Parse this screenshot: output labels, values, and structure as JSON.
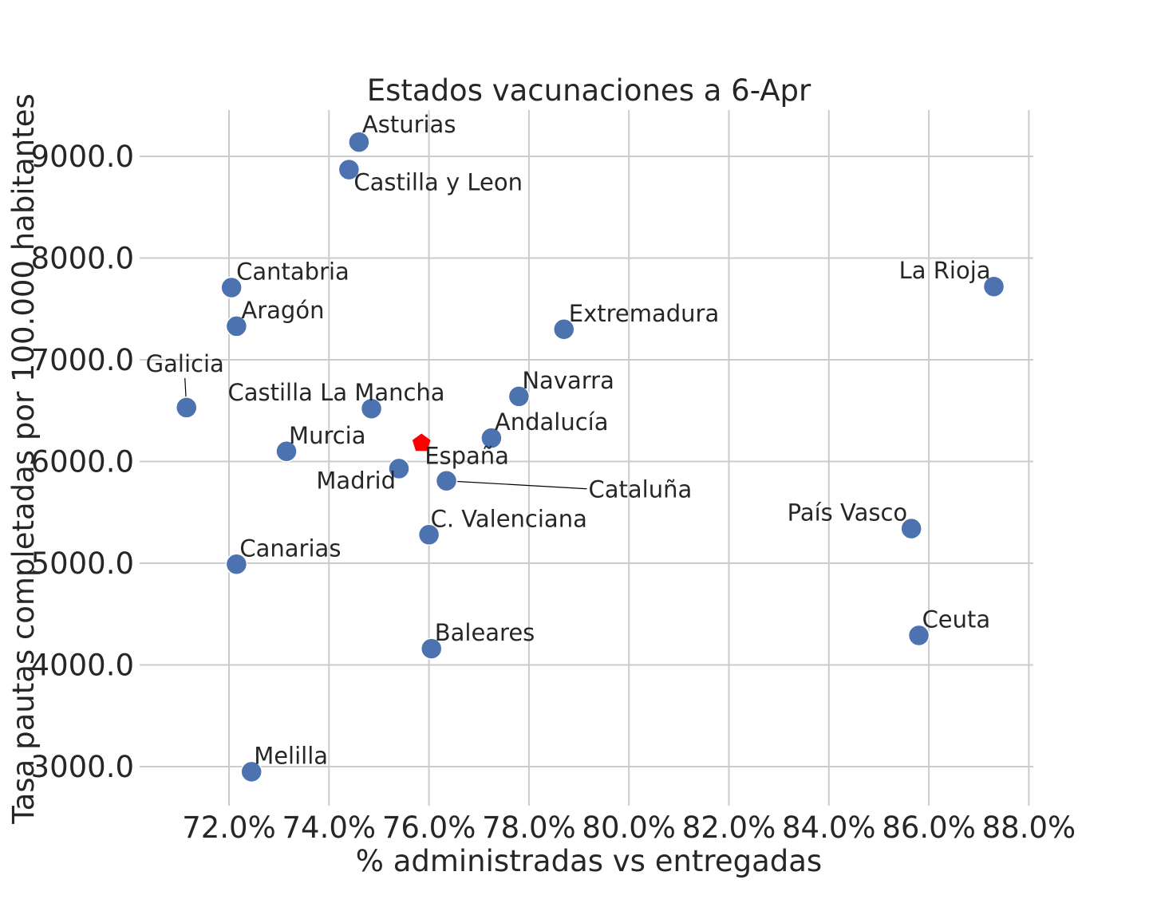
{
  "chart_data": {
    "type": "scatter",
    "title": "Estados vacunaciones a 6-Apr",
    "xlabel": "% administradas vs entregadas",
    "ylabel": "Tasa pautas completadas por 100.000 habitantes",
    "xlim": [
      70.0,
      88.0
    ],
    "ylim": [
      2700,
      9450
    ],
    "x_ticks": [
      72,
      74,
      76,
      78,
      80,
      82,
      84,
      86,
      88
    ],
    "x_tick_labels": [
      "72.0%",
      "74.0%",
      "76.0%",
      "78.0%",
      "80.0%",
      "82.0%",
      "84.0%",
      "86.0%",
      "88.0%"
    ],
    "y_ticks": [
      3000,
      4000,
      5000,
      6000,
      7000,
      8000,
      9000
    ],
    "y_tick_labels": [
      "3000.0",
      "4000.0",
      "5000.0",
      "6000.0",
      "7000.0",
      "8000.0",
      "9000.0"
    ],
    "grid": true,
    "marker_color": "#4c72b0",
    "highlight_color": "#ff0000",
    "points": [
      {
        "label": "Asturias",
        "x": 74.6,
        "y": 9140
      },
      {
        "label": "Castilla y Leon",
        "x": 74.4,
        "y": 8870
      },
      {
        "label": "Cantabria",
        "x": 72.05,
        "y": 7710
      },
      {
        "label": "La Rioja",
        "x": 87.3,
        "y": 7720
      },
      {
        "label": "Aragón",
        "x": 72.15,
        "y": 7330
      },
      {
        "label": "Extremadura",
        "x": 78.7,
        "y": 7300
      },
      {
        "label": "Galicia",
        "x": 71.15,
        "y": 6530
      },
      {
        "label": "Castilla La Mancha",
        "x": 74.85,
        "y": 6520
      },
      {
        "label": "Navarra",
        "x": 77.8,
        "y": 6640
      },
      {
        "label": "Andalucía",
        "x": 77.25,
        "y": 6230
      },
      {
        "label": "Murcia",
        "x": 73.15,
        "y": 6100
      },
      {
        "label": "Madrid",
        "x": 75.4,
        "y": 5930
      },
      {
        "label": "Cataluña",
        "x": 76.35,
        "y": 5810
      },
      {
        "label": "C. Valenciana",
        "x": 76.0,
        "y": 5280
      },
      {
        "label": "País Vasco",
        "x": 85.65,
        "y": 5340
      },
      {
        "label": "Canarias",
        "x": 72.15,
        "y": 4990
      },
      {
        "label": "Baleares",
        "x": 76.05,
        "y": 4160
      },
      {
        "label": "Ceuta",
        "x": 85.8,
        "y": 4290
      },
      {
        "label": "Melilla",
        "x": 72.45,
        "y": 2950
      }
    ],
    "highlight": {
      "label": "España",
      "x": 75.85,
      "y": 6180
    }
  }
}
